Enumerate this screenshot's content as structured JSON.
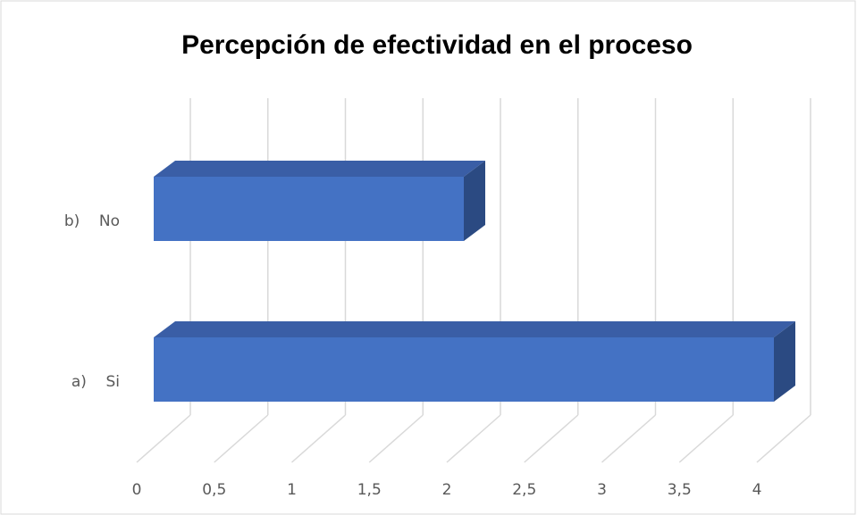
{
  "chart_data": {
    "type": "bar3d_horizontal",
    "title": "Percepción de efectividad en el proceso",
    "categories": [
      "a)    Si",
      "b)    No"
    ],
    "values": [
      4,
      2
    ],
    "color": "#4472c4",
    "xlim": [
      0,
      4
    ],
    "xticks": [
      0,
      {
        "value": 0.5,
        "label": "0,5"
      },
      1,
      {
        "value": 1.5,
        "label": "1,5"
      },
      2,
      {
        "value": 2.5,
        "label": "2,5"
      },
      3,
      {
        "value": 3.5,
        "label": "3,5"
      },
      4
    ],
    "grid": true
  }
}
